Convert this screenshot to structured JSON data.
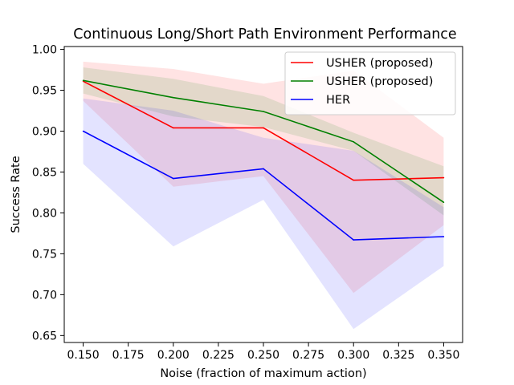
{
  "chart_data": {
    "type": "line",
    "title": "Continuous Long/Short Path Environment Performance",
    "xlabel": "Noise (fraction of maximum action)",
    "ylabel": "Success Rate",
    "x": [
      0.15,
      0.2,
      0.25,
      0.3,
      0.35
    ],
    "xlim": [
      0.1395,
      0.3605
    ],
    "ylim": [
      0.6415,
      1.0035
    ],
    "xticks": [
      0.15,
      0.175,
      0.2,
      0.225,
      0.25,
      0.275,
      0.3,
      0.325,
      0.35
    ],
    "xtick_labels": [
      "0.150",
      "0.175",
      "0.200",
      "0.225",
      "0.250",
      "0.275",
      "0.300",
      "0.325",
      "0.350"
    ],
    "yticks": [
      0.65,
      0.7,
      0.75,
      0.8,
      0.85,
      0.9,
      0.95,
      1.0
    ],
    "ytick_labels": [
      "0.65",
      "0.70",
      "0.75",
      "0.80",
      "0.85",
      "0.90",
      "0.95",
      "1.00"
    ],
    "grid": false,
    "legend_position": "top-right",
    "series": [
      {
        "name": "USHER (proposed)",
        "color": "#ff0000",
        "values": [
          0.961,
          0.904,
          0.904,
          0.84,
          0.843
        ],
        "lower": [
          0.937,
          0.832,
          0.845,
          0.702,
          0.785
        ],
        "upper": [
          0.985,
          0.976,
          0.958,
          0.974,
          0.892
        ]
      },
      {
        "name": "USHER (proposed)",
        "color": "#008000",
        "values": [
          0.962,
          0.941,
          0.924,
          0.887,
          0.813
        ],
        "lower": [
          0.946,
          0.918,
          0.905,
          0.876,
          0.797
        ],
        "upper": [
          0.978,
          0.964,
          0.943,
          0.898,
          0.857
        ]
      },
      {
        "name": "HER",
        "color": "#0000ff",
        "values": [
          0.9,
          0.842,
          0.854,
          0.767,
          0.771
        ],
        "lower": [
          0.86,
          0.759,
          0.816,
          0.658,
          0.735
        ],
        "upper": [
          0.94,
          0.925,
          0.892,
          0.876,
          0.807
        ]
      }
    ]
  }
}
